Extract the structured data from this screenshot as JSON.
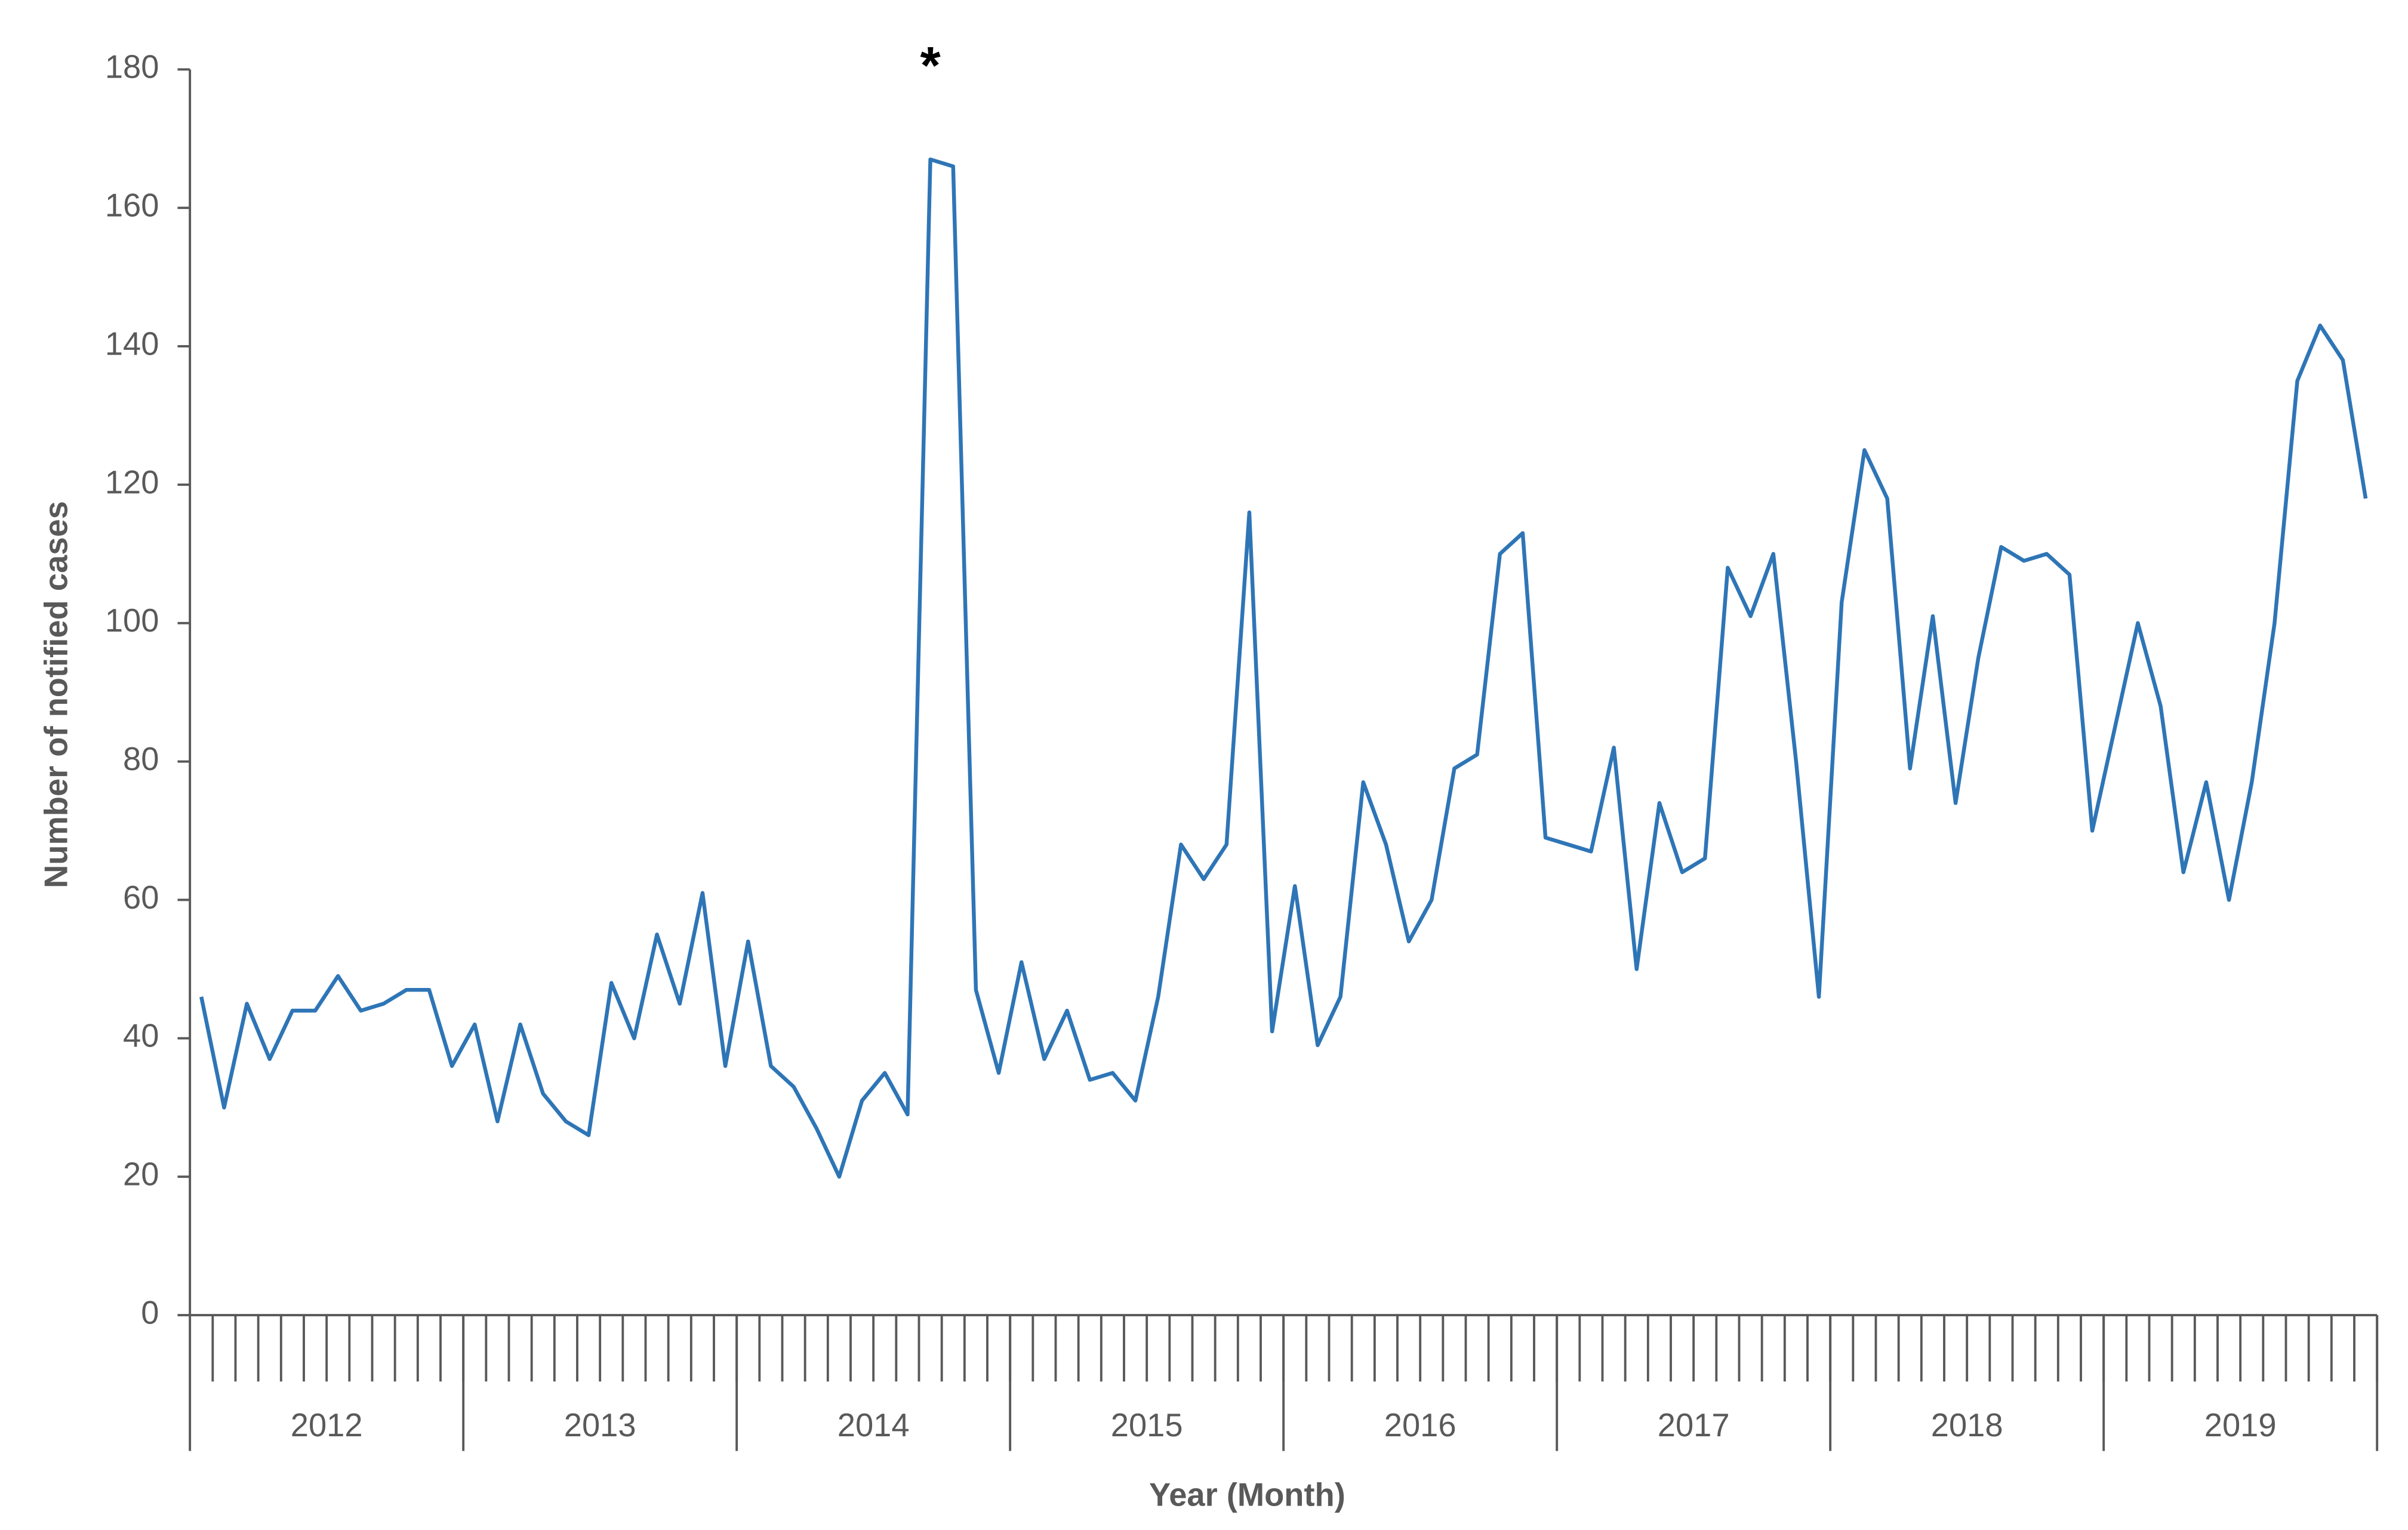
{
  "chart_data": {
    "type": "line",
    "y_label": "Number of notified cases",
    "x_label": "Year (Month)",
    "year_labels": [
      "2012",
      "2013",
      "2014",
      "2015",
      "2016",
      "2017",
      "2018",
      "2019"
    ],
    "categories": [
      null,
      null,
      null,
      null,
      null,
      null,
      null,
      null,
      null,
      null,
      null,
      null,
      null,
      null,
      null,
      null,
      null,
      null,
      null,
      null,
      null,
      null,
      null,
      null,
      null,
      null,
      null,
      null,
      null,
      null,
      null,
      null,
      null,
      null,
      null,
      null,
      null,
      null,
      null,
      null,
      null,
      null,
      null,
      null,
      null,
      null,
      null,
      null,
      null,
      null,
      null,
      null,
      null,
      null,
      null,
      null,
      null,
      null,
      null,
      null,
      null,
      null,
      null,
      null,
      null,
      null,
      null,
      null,
      null,
      null,
      null,
      null,
      null,
      null,
      null,
      null,
      null,
      null,
      null,
      null,
      null,
      null,
      null,
      null,
      null,
      null,
      null,
      null,
      null,
      null,
      null,
      null,
      null,
      null,
      null,
      null
    ],
    "series": [
      {
        "color": "#2e75b6",
        "values": [
          46,
          30,
          45,
          37,
          44,
          44,
          49,
          44,
          45,
          47,
          47,
          36,
          42,
          28,
          42,
          32,
          28,
          26,
          48,
          40,
          55,
          45,
          61,
          36,
          54,
          36,
          33,
          27,
          20,
          31,
          35,
          29,
          167,
          166,
          47,
          35,
          51,
          37,
          44,
          34,
          35,
          31,
          46,
          68,
          63,
          68,
          116,
          41,
          62,
          39,
          46,
          77,
          68,
          54,
          60,
          79,
          81,
          110,
          113,
          69,
          68,
          67,
          82,
          50,
          74,
          64,
          66,
          108,
          101,
          110,
          80,
          46,
          103,
          125,
          118,
          79,
          101,
          74,
          95,
          111,
          109,
          110,
          107,
          70,
          85,
          100,
          88,
          64,
          77,
          60,
          77,
          100,
          135,
          143,
          138,
          118
        ]
      }
    ],
    "annotation": "*",
    "ylim": [
      0,
      180
    ],
    "yticks": [
      0,
      20,
      40,
      60,
      80,
      100,
      120,
      140,
      160,
      180
    ],
    "grid": false
  }
}
